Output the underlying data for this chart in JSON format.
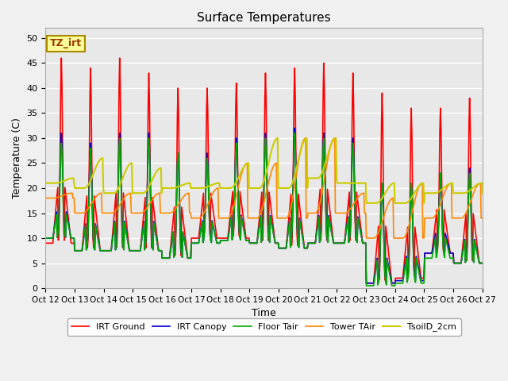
{
  "title": "Surface Temperatures",
  "xlabel": "Time",
  "ylabel": "Temperature (C)",
  "ylim": [
    0,
    52
  ],
  "xlim": [
    0,
    360
  ],
  "background_color": "#e8e8e8",
  "figure_color": "#f0f0f0",
  "grid_color": "#ffffff",
  "annotation_text": "TZ_irt",
  "annotation_bg": "#ffff99",
  "annotation_border": "#ccaa00",
  "x_tick_labels": [
    "Oct 12",
    "Oct 13",
    "Oct 14",
    "Oct 15",
    "Oct 16",
    "Oct 17",
    "Oct 18",
    "Oct 19",
    "Oct 20",
    "Oct 21",
    "Oct 22",
    "Oct 23",
    "Oct 24",
    "Oct 25",
    "Oct 26",
    "Oct 27"
  ],
  "x_tick_positions": [
    0,
    24,
    48,
    72,
    96,
    120,
    144,
    168,
    192,
    216,
    240,
    264,
    288,
    312,
    336,
    360
  ],
  "legend_entries": [
    "IRT Ground",
    "IRT Canopy",
    "Floor Tair",
    "Tower TAir",
    "TsoilD_2cm"
  ],
  "line_colors": [
    "#ff0000",
    "#0000cc",
    "#00aa00",
    "#ff8800",
    "#cccc00"
  ],
  "line_widths": [
    1.2,
    1.2,
    1.2,
    1.2,
    1.5
  ]
}
